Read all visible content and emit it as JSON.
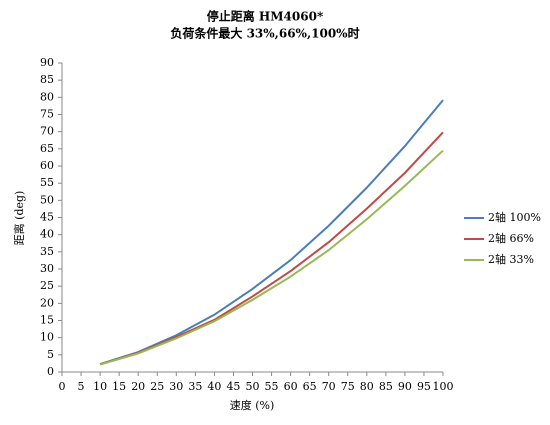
{
  "chart_data": {
    "type": "line",
    "title": "停止距离 HM4060*",
    "subtitle": "负荷条件最大 33%,66%,100%时",
    "x_label": "速度 (%)",
    "y_label": "距离 (deg)",
    "x": [
      10,
      20,
      30,
      40,
      50,
      60,
      70,
      80,
      90,
      100
    ],
    "series": [
      {
        "name": "2轴 100%",
        "color": "#4a7ebb",
        "values": [
          2.3,
          5.8,
          10.7,
          16.7,
          24.2,
          32.6,
          42.6,
          53.7,
          65.8,
          79.2
        ]
      },
      {
        "name": "2轴 66%",
        "color": "#be4b48",
        "values": [
          2.2,
          5.6,
          10.2,
          15.2,
          22,
          29.4,
          37.8,
          47.6,
          58,
          69.8
        ]
      },
      {
        "name": "2轴 33%",
        "color": "#98b954",
        "values": [
          2.2,
          5.4,
          9.8,
          14.8,
          21,
          27.8,
          35.5,
          44.5,
          54.2,
          64.5
        ]
      }
    ],
    "xlim": [
      0,
      100
    ],
    "xticks": [
      0,
      5,
      10,
      15,
      20,
      25,
      30,
      35,
      40,
      45,
      50,
      55,
      60,
      65,
      70,
      75,
      80,
      85,
      90,
      95,
      100
    ],
    "ylim": [
      0,
      90
    ],
    "yticks": [
      0,
      5,
      10,
      15,
      20,
      25,
      30,
      35,
      40,
      45,
      50,
      55,
      60,
      65,
      70,
      75,
      80,
      85,
      90
    ],
    "grid": false,
    "legend": "right"
  }
}
